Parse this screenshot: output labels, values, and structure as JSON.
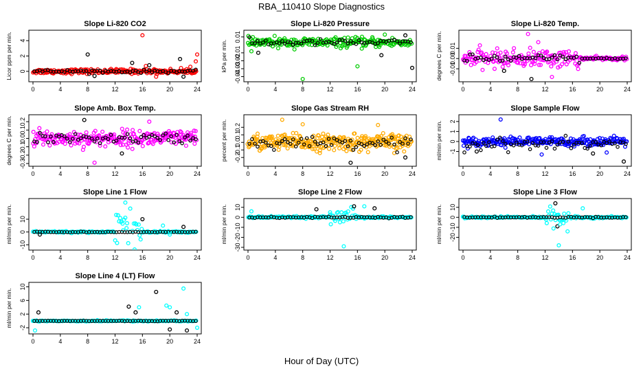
{
  "title": "RBA_110410  Slope Diagnostics",
  "xlabel": "Hour of Day (UTC)",
  "colors": {
    "reference": "#000000",
    "red": "#ff0000",
    "green": "#00cc00",
    "magenta": "#ff00ff",
    "orange": "#ffaa00",
    "blue": "#0000ff",
    "cyan": "#00ffff"
  },
  "chart_data": [
    {
      "type": "scatter",
      "title": "Slope Li-820 CO2",
      "ylabel": "Licor ppm per min.",
      "color": "#ff0000",
      "xlim": [
        0,
        24
      ],
      "ylim": [
        -1,
        5
      ],
      "xticks": [
        "0",
        "4",
        "8",
        "12",
        "16",
        "20",
        "24"
      ],
      "yticks": [
        {
          "v": 0,
          "t": "0"
        },
        {
          "v": 2,
          "t": "2"
        },
        {
          "v": 4,
          "t": "4"
        }
      ],
      "spread": 0.25,
      "black_spread": 0.2,
      "n": 220,
      "outliers": [
        [
          16,
          4.7
        ],
        [
          8,
          2.2
        ],
        [
          24,
          2.2
        ],
        [
          21.5,
          1.6
        ],
        [
          23.8,
          1.3
        ],
        [
          14.5,
          1.1
        ],
        [
          16.5,
          0.7
        ],
        [
          17,
          0.8
        ],
        [
          23,
          0.6
        ],
        [
          9,
          -0.6
        ],
        [
          18,
          -0.7
        ],
        [
          22,
          -0.7
        ]
      ]
    },
    {
      "type": "scatter",
      "title": "Slope Li-820 Pressure",
      "ylabel": "kPa per min.",
      "color": "#00cc00",
      "xlim": [
        0,
        24
      ],
      "ylim": [
        -0.043,
        0.015
      ],
      "xticks": [
        "0",
        "4",
        "8",
        "12",
        "16",
        "20",
        "24"
      ],
      "yticks": [
        {
          "v": 0.01,
          "t": "0.01"
        },
        {
          "v": -0.01,
          "t": "-0.01"
        },
        {
          "v": -0.02,
          "t": "-0.02"
        },
        {
          "v": -0.03,
          "t": "-0.03"
        },
        {
          "v": -0.04,
          "t": "-0.04"
        }
      ],
      "center": 0.003,
      "spread": 0.005,
      "black_spread": 0.004,
      "n": 230,
      "outliers": [
        [
          8,
          -0.043
        ],
        [
          24,
          -0.029
        ],
        [
          16,
          -0.027
        ],
        [
          19.5,
          -0.013
        ],
        [
          20,
          0.013
        ],
        [
          23,
          0.012
        ],
        [
          0.5,
          -0.008
        ],
        [
          1.5,
          -0.01
        ]
      ]
    },
    {
      "type": "scatter",
      "title": "Slope Li-820 Temp.",
      "ylabel": "degrees C per min.",
      "color": "#ff00ff",
      "xlim": [
        0,
        24
      ],
      "ylim": [
        -0.02,
        0.025
      ],
      "xticks": [
        "0",
        "4",
        "8",
        "12",
        "16",
        "20",
        "24"
      ],
      "yticks": [
        {
          "v": 0.01,
          "t": "0.01"
        },
        {
          "v": 0,
          "t": "0.00"
        },
        {
          "v": -0.01,
          "t": "-0.01"
        }
      ],
      "spread": 0.007,
      "black_spread": 0.004,
      "n": 230,
      "taper": true,
      "outliers": [
        [
          9.5,
          0.024
        ],
        [
          10,
          -0.02
        ],
        [
          13,
          -0.018
        ],
        [
          6,
          -0.012
        ],
        [
          11,
          0.016
        ]
      ]
    },
    {
      "type": "scatter",
      "title": "Slope Amb. Box Temp.",
      "ylabel": "degrees C per min.",
      "color": "#ff00ff",
      "xlim": [
        0,
        24
      ],
      "ylim": [
        -0.3,
        0.25
      ],
      "xticks": [
        "0",
        "4",
        "8",
        "12",
        "16",
        "20",
        "24"
      ],
      "yticks": [
        {
          "v": 0.2,
          "t": "0.2"
        },
        {
          "v": 0.1,
          "t": "0.1"
        },
        {
          "v": 0,
          "t": "0.0"
        },
        {
          "v": -0.1,
          "t": "-0.1"
        },
        {
          "v": -0.2,
          "t": "-0.2"
        },
        {
          "v": -0.3,
          "t": "-0.3"
        }
      ],
      "spread": 0.08,
      "black_spread": 0.06,
      "n": 260,
      "outliers": [
        [
          9,
          -0.29
        ],
        [
          7.5,
          0.22
        ],
        [
          17,
          0.2
        ],
        [
          13,
          -0.18
        ]
      ]
    },
    {
      "type": "scatter",
      "title": "Slope Gas Stream RH",
      "ylabel": "percent per min.",
      "color": "#ffaa00",
      "xlim": [
        0,
        24
      ],
      "ylim": [
        -0.28,
        0.33
      ],
      "xticks": [
        "0",
        "4",
        "8",
        "12",
        "16",
        "20",
        "24"
      ],
      "yticks": [
        {
          "v": 0.2,
          "t": "0.2"
        },
        {
          "v": 0.1,
          "t": "0.1"
        },
        {
          "v": 0,
          "t": "0.0"
        },
        {
          "v": -0.1,
          "t": "-0.1"
        },
        {
          "v": -0.2,
          "t": "-0.2"
        }
      ],
      "spread": 0.09,
      "black_spread": 0.07,
      "n": 300,
      "outliers": [
        [
          5,
          0.3
        ],
        [
          15,
          -0.27
        ],
        [
          19,
          0.23
        ],
        [
          23,
          -0.2
        ],
        [
          8,
          0.24
        ]
      ]
    },
    {
      "type": "scatter",
      "title": "Slope Sample Flow",
      "ylabel": "ml/min per min.",
      "color": "#0000ff",
      "xlim": [
        0,
        24
      ],
      "ylim": [
        -2.2,
        2.4
      ],
      "xticks": [
        "0",
        "4",
        "8",
        "12",
        "16",
        "20",
        "24"
      ],
      "yticks": [
        {
          "v": 2,
          "t": "2"
        },
        {
          "v": 1,
          "t": "1"
        },
        {
          "v": 0,
          "t": "0"
        },
        {
          "v": -1,
          "t": "-1"
        }
      ],
      "spread": 0.35,
      "black_spread": 0.6,
      "n": 260,
      "black_offset": -0.3,
      "outliers": [
        [
          5.5,
          2.2
        ],
        [
          23.5,
          -2.0
        ],
        [
          11.5,
          -1.3
        ],
        [
          19,
          -1.2
        ],
        [
          21,
          -1.1
        ],
        [
          2,
          -1.0
        ]
      ]
    },
    {
      "type": "scatter",
      "title": "Slope Line 1 Flow",
      "ylabel": "ml/min per min.",
      "color": "#00ffff",
      "xlim": [
        0,
        24
      ],
      "ylim": [
        -12,
        24
      ],
      "xticks": [
        "0",
        "4",
        "8",
        "12",
        "16",
        "20",
        "24"
      ],
      "yticks": [
        {
          "v": 10,
          "t": "10"
        },
        {
          "v": 0,
          "t": "0"
        },
        {
          "v": -10,
          "t": "-10"
        }
      ],
      "spread": 0.6,
      "black_spread": 0.3,
      "n": 160,
      "burst": [
        12,
        16,
        7
      ],
      "outliers": [
        [
          13.5,
          23
        ],
        [
          16,
          10
        ],
        [
          19,
          5
        ],
        [
          22,
          4
        ],
        [
          20,
          -2
        ],
        [
          1,
          -2
        ]
      ]
    },
    {
      "type": "scatter",
      "title": "Slope Line 2 Flow",
      "ylabel": "ml/min per min.",
      "color": "#00ffff",
      "xlim": [
        0,
        24
      ],
      "ylim": [
        -30,
        16
      ],
      "xticks": [
        "0",
        "4",
        "8",
        "12",
        "16",
        "20",
        "24"
      ],
      "yticks": [
        {
          "v": 10,
          "t": "10"
        },
        {
          "v": 0,
          "t": "0"
        },
        {
          "v": -10,
          "t": "-10"
        },
        {
          "v": -20,
          "t": "-20"
        },
        {
          "v": -30,
          "t": "-30"
        }
      ],
      "spread": 0.8,
      "black_spread": 0.6,
      "n": 170,
      "burst": [
        12,
        16,
        5
      ],
      "outliers": [
        [
          14,
          -29
        ],
        [
          15.5,
          11
        ],
        [
          17,
          11
        ],
        [
          18.5,
          9
        ],
        [
          0.5,
          6
        ],
        [
          10,
          8
        ],
        [
          12,
          5
        ]
      ]
    },
    {
      "type": "scatter",
      "title": "Slope Line 3 Flow",
      "ylabel": "ml/min per min.",
      "color": "#00ffff",
      "xlim": [
        0,
        24
      ],
      "ylim": [
        -30,
        16
      ],
      "xticks": [
        "0",
        "4",
        "8",
        "12",
        "16",
        "20",
        "24"
      ],
      "yticks": [
        {
          "v": 10,
          "t": "10"
        },
        {
          "v": 0,
          "t": "0"
        },
        {
          "v": -10,
          "t": "-10"
        },
        {
          "v": -20,
          "t": "-20"
        }
      ],
      "spread": 0.8,
      "black_spread": 0.5,
      "n": 170,
      "burst": [
        12,
        15.5,
        6
      ],
      "outliers": [
        [
          14,
          -28
        ],
        [
          13.5,
          14
        ],
        [
          17.5,
          9
        ],
        [
          13.8,
          -9
        ],
        [
          14.2,
          -7
        ]
      ]
    },
    {
      "type": "scatter",
      "title": "Slope Line 4 (LT) Flow",
      "ylabel": "ml/min per min.",
      "color": "#00ffff",
      "xlim": [
        0,
        24
      ],
      "ylim": [
        -3,
        10.5
      ],
      "xticks": [
        "0",
        "4",
        "8",
        "12",
        "16",
        "20",
        "24"
      ],
      "yticks": [
        {
          "v": 10,
          "t": "10"
        },
        {
          "v": 6,
          "t": "6"
        },
        {
          "v": 2,
          "t": "2"
        },
        {
          "v": -2,
          "t": "-2"
        }
      ],
      "spread": 0.15,
      "black_spread": 0.08,
      "n": 150,
      "outliers": [
        [
          22,
          9.5
        ],
        [
          18,
          8.5
        ],
        [
          19.5,
          4.5
        ],
        [
          14,
          4.2
        ],
        [
          15.5,
          4
        ],
        [
          15,
          2.5
        ],
        [
          20,
          4
        ],
        [
          21,
          2.5
        ],
        [
          22.5,
          2
        ],
        [
          0.8,
          2.5
        ],
        [
          0.3,
          -2.8
        ],
        [
          20,
          -2.5
        ],
        [
          24,
          -2
        ],
        [
          22.5,
          -2.8
        ]
      ]
    }
  ]
}
